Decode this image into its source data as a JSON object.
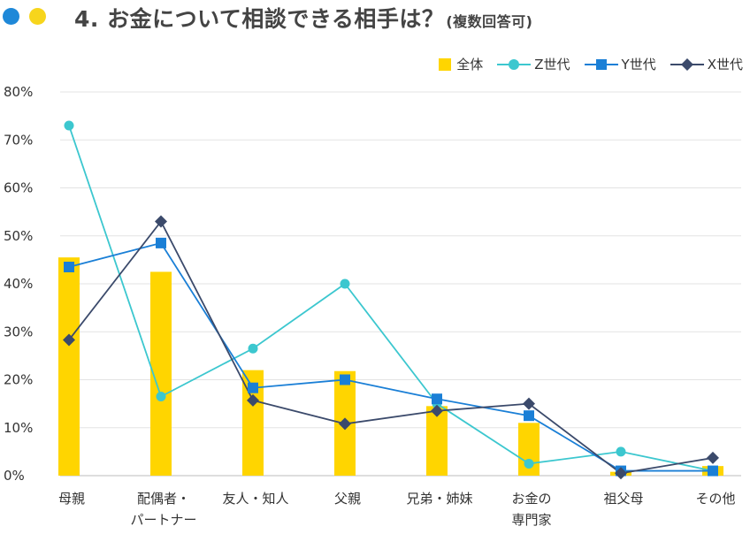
{
  "header": {
    "title": "4. お金について相談できる相手は？",
    "subtitle": "(複数回答可)"
  },
  "colors": {
    "overall": "#ffd500",
    "genz": "#3cc7cf",
    "geny": "#1a7fd6",
    "genx": "#3b4a6b",
    "dot_blue": "#1e88d8",
    "dot_yellow": "#f7d51c"
  },
  "chart_data": {
    "type": "bar",
    "title": "4. お金について相談できる相手は？(複数回答可)",
    "xlabel": "",
    "ylabel": "",
    "ylim": [
      0,
      80
    ],
    "yticks": [
      0,
      10,
      20,
      30,
      40,
      50,
      60,
      70,
      80
    ],
    "ytick_labels": [
      "0%",
      "10%",
      "20%",
      "30%",
      "40%",
      "50%",
      "60%",
      "70%",
      "80%"
    ],
    "grid": true,
    "legend_position": "top-right",
    "categories": [
      [
        "母親"
      ],
      [
        "配偶者・",
        "パートナー"
      ],
      [
        "友人・知人"
      ],
      [
        "父親"
      ],
      [
        "兄弟・姉妹"
      ],
      [
        "お金の",
        "専門家"
      ],
      [
        "祖父母"
      ],
      [
        "その他"
      ]
    ],
    "series": [
      {
        "name": "全体",
        "type": "bar",
        "values": [
          45.5,
          42.5,
          22.0,
          21.8,
          14.5,
          11.0,
          0.8,
          2.0
        ]
      },
      {
        "name": "Z世代",
        "type": "line",
        "marker": "circle",
        "values": [
          73.0,
          16.5,
          26.5,
          40.0,
          15.0,
          2.5,
          5.0,
          1.0
        ]
      },
      {
        "name": "Y世代",
        "type": "line",
        "marker": "square",
        "values": [
          43.5,
          48.5,
          18.3,
          20.0,
          16.0,
          12.5,
          1.0,
          1.0
        ]
      },
      {
        "name": "X世代",
        "type": "line",
        "marker": "diamond",
        "values": [
          28.3,
          53.0,
          15.7,
          10.8,
          13.5,
          15.0,
          0.5,
          3.7
        ]
      }
    ]
  }
}
